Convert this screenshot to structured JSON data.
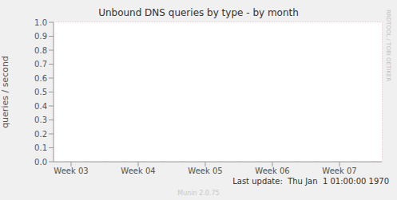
{
  "chart_data": {
    "type": "line",
    "title": "Unbound DNS queries by type - by month",
    "ylabel": "queries / second",
    "categories": [
      "Week 03",
      "Week 04",
      "Week 05",
      "Week 06",
      "Week 07"
    ],
    "values": [
      null,
      null,
      null,
      null,
      null
    ],
    "ylim": [
      0,
      1
    ],
    "yticks": [
      {
        "value": 0,
        "label": "0.0"
      },
      0.1,
      0.2,
      0.3,
      0.4,
      0.5,
      0.6,
      0.7,
      0.8,
      0.9,
      {
        "value": 1,
        "label": "1.0"
      }
    ],
    "grid": true,
    "annotations": [
      "Last update:  Thu Jan  1 01:00:00 1970",
      "Munin 2.0.75",
      "RRDTOOL / TOBI OETIKER"
    ]
  }
}
